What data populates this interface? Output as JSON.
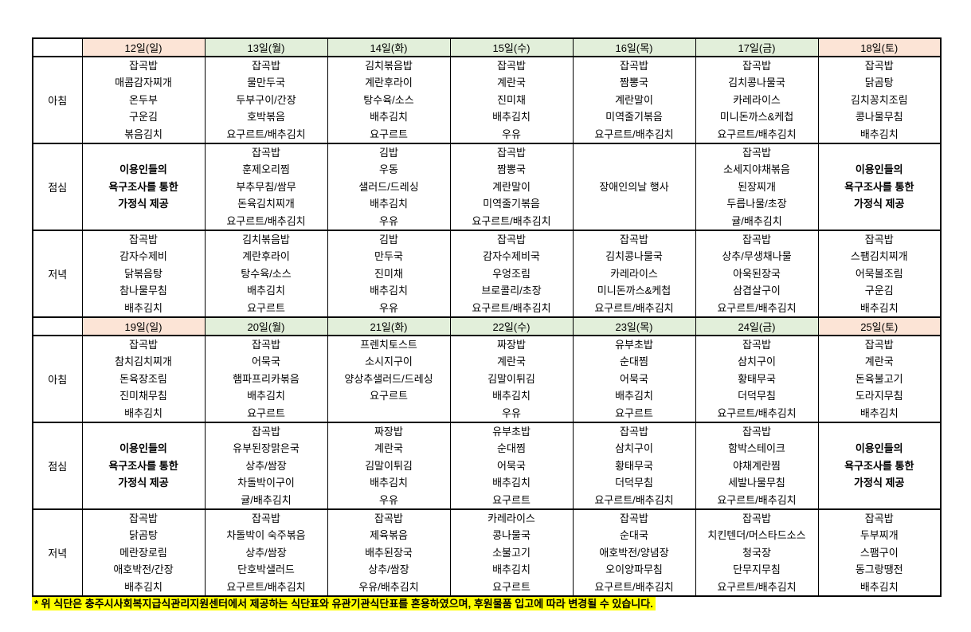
{
  "colors": {
    "weekend_header": "#FCE4D6",
    "weekday_header": "#E2EFDA",
    "highlight": "#FFFF00",
    "border": "#000000"
  },
  "footer": {
    "note": "* 위 식단은 충주시사회복지급식관리지원센터에서 제공하는 식단표와 유관기관식단표를 혼용하였으며, 후원물품 입고에 따라 변경될 수 있습니다."
  },
  "table": {
    "weeks": [
      {
        "headers": [
          {
            "label": "12일(일)",
            "kind": "weekend"
          },
          {
            "label": "13일(월)",
            "kind": "weekday"
          },
          {
            "label": "14일(화)",
            "kind": "weekday"
          },
          {
            "label": "15일(수)",
            "kind": "weekday"
          },
          {
            "label": "16일(목)",
            "kind": "weekday"
          },
          {
            "label": "17일(금)",
            "kind": "weekday"
          },
          {
            "label": "18일(토)",
            "kind": "weekend"
          }
        ],
        "meals": [
          {
            "label": "아침",
            "cells": [
              {
                "lines": [
                  "잡곡밥",
                  "매콤감자찌개",
                  "온두부",
                  "구운김",
                  "볶음김치"
                ]
              },
              {
                "lines": [
                  "잡곡밥",
                  "물만두국",
                  "두부구이/간장",
                  "호박볶음",
                  "요구르트/배추김치"
                ]
              },
              {
                "lines": [
                  "김치볶음밥",
                  "계란후라이",
                  "탕수육/소스",
                  "배추김치",
                  "요구르트"
                ]
              },
              {
                "lines": [
                  "잡곡밥",
                  "계란국",
                  "진미채",
                  "배추김치",
                  "우유"
                ]
              },
              {
                "lines": [
                  "잡곡밥",
                  "짬뽕국",
                  "계란말이",
                  "미역줄기볶음",
                  "요구르트/배추김치"
                ]
              },
              {
                "lines": [
                  "잡곡밥",
                  "김치콩나물국",
                  "카레라이스",
                  "미니돈까스&케첩",
                  "요구르트/배추김치"
                ]
              },
              {
                "lines": [
                  "잡곡밥",
                  "닭곰탕",
                  "김치꽁치조림",
                  "콩나물무침",
                  "배추김치"
                ]
              }
            ]
          },
          {
            "label": "점심",
            "cells": [
              {
                "lines": [
                  "이용인들의",
                  "욕구조사를 통한",
                  "가정식 제공"
                ],
                "bold": true,
                "center": true
              },
              {
                "lines": [
                  "잡곡밥",
                  "훈제오리찜",
                  "부추무침/쌈무",
                  "돈육김치찌개",
                  "요구르트/배추김치"
                ]
              },
              {
                "lines": [
                  "김밥",
                  "우동",
                  "샐러드/드레싱",
                  "배추김치",
                  "우유"
                ]
              },
              {
                "lines": [
                  "잡곡밥",
                  "짬뽕국",
                  "계란말이",
                  "미역줄기볶음",
                  "요구르트/배추김치"
                ]
              },
              {
                "lines": [
                  "장애인의날 행사"
                ],
                "center": true
              },
              {
                "lines": [
                  "잡곡밥",
                  "소세지야채볶음",
                  "된장찌개",
                  "두릅나물/초장",
                  "귤/배추김치"
                ]
              },
              {
                "lines": [
                  "이용인들의",
                  "욕구조사를 통한",
                  "가정식 제공"
                ],
                "bold": true,
                "center": true
              }
            ]
          },
          {
            "label": "저녁",
            "cells": [
              {
                "lines": [
                  "잡곡밥",
                  "감자수제비",
                  "닭볶음탕",
                  "참나물무침",
                  "배추김치"
                ]
              },
              {
                "lines": [
                  "김치볶음밥",
                  "계란후라이",
                  "탕수육/소스",
                  "배추김치",
                  "요구르트"
                ]
              },
              {
                "lines": [
                  "김밥",
                  "만두국",
                  "진미채",
                  "배추김치",
                  "우유"
                ]
              },
              {
                "lines": [
                  "잡곡밥",
                  "감자수제비국",
                  "우엉조림",
                  "브로콜리/초장",
                  "요구르트/배추김치"
                ]
              },
              {
                "lines": [
                  "잡곡밥",
                  "김치콩나물국",
                  "카레라이스",
                  "미니돈까스&케첩",
                  "요구르트/배추김치"
                ]
              },
              {
                "lines": [
                  "잡곡밥",
                  "상추/무생채나물",
                  "아욱된장국",
                  "삼겹살구이",
                  "요구르트/배추김치"
                ]
              },
              {
                "lines": [
                  "잡곡밥",
                  "스팸김치찌개",
                  "어묵볼조림",
                  "구운김",
                  "배추김치"
                ]
              }
            ]
          }
        ]
      },
      {
        "headers": [
          {
            "label": "19일(일)",
            "kind": "weekend"
          },
          {
            "label": "20일(월)",
            "kind": "weekday"
          },
          {
            "label": "21일(화)",
            "kind": "weekday"
          },
          {
            "label": "22일(수)",
            "kind": "weekday"
          },
          {
            "label": "23일(목)",
            "kind": "weekday"
          },
          {
            "label": "24일(금)",
            "kind": "weekday"
          },
          {
            "label": "25일(토)",
            "kind": "weekend"
          }
        ],
        "meals": [
          {
            "label": "아침",
            "cells": [
              {
                "lines": [
                  "잡곡밥",
                  "참치김치찌개",
                  "돈육장조림",
                  "진미채무침",
                  "배추김치"
                ]
              },
              {
                "lines": [
                  "잡곡밥",
                  "어묵국",
                  "햄파프리카볶음",
                  "배추김치",
                  "요구르트"
                ]
              },
              {
                "lines": [
                  "프렌치토스트",
                  "소시지구이",
                  "양상추샐러드/드레싱",
                  "요구르트"
                ]
              },
              {
                "lines": [
                  "짜장밥",
                  "계란국",
                  "김말이튀김",
                  "배추김치",
                  "우유"
                ]
              },
              {
                "lines": [
                  "유부초밥",
                  "순대찜",
                  "어묵국",
                  "배추김치",
                  "요구르트"
                ]
              },
              {
                "lines": [
                  "잡곡밥",
                  "삼치구이",
                  "황태무국",
                  "더덕무침",
                  "요구르트/배추김치"
                ]
              },
              {
                "lines": [
                  "잡곡밥",
                  "계란국",
                  "돈육불고기",
                  "도라지무침",
                  "배추김치"
                ]
              }
            ]
          },
          {
            "label": "점심",
            "cells": [
              {
                "lines": [
                  "이용인들의",
                  "욕구조사를 통한",
                  "가정식 제공"
                ],
                "bold": true,
                "center": true
              },
              {
                "lines": [
                  "잡곡밥",
                  "유부된장맑은국",
                  "상추/쌈장",
                  "차돌박이구이",
                  "귤/배추김치"
                ]
              },
              {
                "lines": [
                  "짜장밥",
                  "계란국",
                  "김말이튀김",
                  "배추김치",
                  "우유"
                ]
              },
              {
                "lines": [
                  "유부초밥",
                  "순대찜",
                  "어묵국",
                  "배추김치",
                  "요구르트"
                ]
              },
              {
                "lines": [
                  "잡곡밥",
                  "삼치구이",
                  "황태무국",
                  "더덕무침",
                  "요구르트/배추김치"
                ]
              },
              {
                "lines": [
                  "잡곡밥",
                  "함박스테이크",
                  "야채계란찜",
                  "세발나물무침",
                  "요구르트/배추김치"
                ]
              },
              {
                "lines": [
                  "이용인들의",
                  "욕구조사를 통한",
                  "가정식 제공"
                ],
                "bold": true,
                "center": true
              }
            ]
          },
          {
            "label": "저녁",
            "cells": [
              {
                "lines": [
                  "잡곡밥",
                  "닭곰탕",
                  "메란장로림",
                  "애호박전/간장",
                  "배추김치"
                ]
              },
              {
                "lines": [
                  "잡곡밥",
                  "차돌박이 숙주볶음",
                  "상추/쌈장",
                  "단호박샐러드",
                  "요구르트/배추김치"
                ]
              },
              {
                "lines": [
                  "잡곡밥",
                  "제육볶음",
                  "배추된장국",
                  "상추/쌈장",
                  "우유/배추김치"
                ]
              },
              {
                "lines": [
                  "카레라이스",
                  "콩나물국",
                  "소불고기",
                  "배추김치",
                  "요구르트"
                ]
              },
              {
                "lines": [
                  "잡곡밥",
                  "순대국",
                  "애호박전/양념장",
                  "오이양파무침",
                  "요구르트/배추김치"
                ]
              },
              {
                "lines": [
                  "잡곡밥",
                  "치킨텐더/머스타드소스",
                  "청국장",
                  "단무지무침",
                  "요구르트/배추김치"
                ]
              },
              {
                "lines": [
                  "잡곡밥",
                  "두부찌개",
                  "스팸구이",
                  "동그랑땡전",
                  "배추김치"
                ]
              }
            ]
          }
        ]
      }
    ]
  }
}
